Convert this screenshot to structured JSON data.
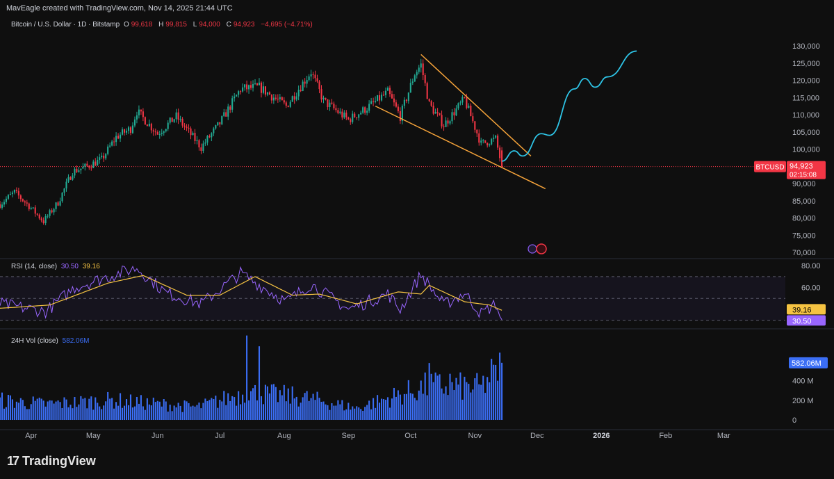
{
  "caption": "MavEagle created with TradingView.com, Nov 14, 2025 21:44 UTC",
  "logo": {
    "mark": "17",
    "text": "TradingView",
    "icon": "tradingview-logo-icon"
  },
  "legend": {
    "symbol": "Bitcoin / U.S. Dollar · 1D · Bitstamp",
    "o_label": "O",
    "o": "99,618",
    "h_label": "H",
    "h": "99,815",
    "l_label": "L",
    "l": "94,000",
    "c_label": "C",
    "c": "94,923",
    "change": "−4,695 (−4.71%)",
    "rsi_label": "RSI (14, close)",
    "rsi": "30.50",
    "rsi_ma": "39.16",
    "vol_label": "24H Vol (close)",
    "vol": "582.06M"
  },
  "badges": {
    "price_symbol": "BTCUSD",
    "price_value": "94,923",
    "price_countdown": "02:15:08",
    "rsi_ma": "39.16",
    "rsi": "30.50",
    "vol": "582.06M"
  },
  "colors": {
    "up": "#22ab94",
    "down": "#f23645",
    "trendline": "#f7a43a",
    "projection": "#2ec4e6",
    "rsi": "#9966ff",
    "rsi_ma": "#f5c342",
    "volume": "#3b6ef5"
  },
  "chart_data": [
    {
      "type": "candlestick",
      "title": "Bitcoin / U.S. Dollar · 1D · Bitstamp",
      "x_axis": {
        "ticks": [
          "Apr",
          "May",
          "Jun",
          "Jul",
          "Aug",
          "Sep",
          "Oct",
          "Nov",
          "Dec",
          "2026",
          "Feb",
          "Mar"
        ],
        "range": [
          "2025-03-17",
          "2026-03-24"
        ]
      },
      "y_axis": {
        "ticks": [
          "70,000",
          "75,000",
          "80,000",
          "85,000",
          "90,000",
          "95,000",
          "100,000",
          "105,000",
          "110,000",
          "115,000",
          "120,000",
          "125,000",
          "130,000"
        ],
        "range": [
          70000,
          130000
        ],
        "side": "right"
      },
      "last_price": 94923,
      "close_anchors": [
        {
          "date": "2025-03-17",
          "close": 84000
        },
        {
          "date": "2025-03-24",
          "close": 87500
        },
        {
          "date": "2025-03-31",
          "close": 83500
        },
        {
          "date": "2025-04-07",
          "close": 79000
        },
        {
          "date": "2025-04-14",
          "close": 84500
        },
        {
          "date": "2025-04-21",
          "close": 93500
        },
        {
          "date": "2025-04-28",
          "close": 95000
        },
        {
          "date": "2025-05-05",
          "close": 97000
        },
        {
          "date": "2025-05-12",
          "close": 103500
        },
        {
          "date": "2025-05-19",
          "close": 106000
        },
        {
          "date": "2025-05-22",
          "close": 111000
        },
        {
          "date": "2025-06-01",
          "close": 104500
        },
        {
          "date": "2025-06-10",
          "close": 109500
        },
        {
          "date": "2025-06-22",
          "close": 100500
        },
        {
          "date": "2025-07-01",
          "close": 107500
        },
        {
          "date": "2025-07-11",
          "close": 117500
        },
        {
          "date": "2025-07-20",
          "close": 118000
        },
        {
          "date": "2025-08-02",
          "close": 112500
        },
        {
          "date": "2025-08-14",
          "close": 122500
        },
        {
          "date": "2025-08-20",
          "close": 114000
        },
        {
          "date": "2025-09-01",
          "close": 108500
        },
        {
          "date": "2025-09-10",
          "close": 112000
        },
        {
          "date": "2025-09-20",
          "close": 116500
        },
        {
          "date": "2025-09-26",
          "close": 109500
        },
        {
          "date": "2025-10-03",
          "close": 122000
        },
        {
          "date": "2025-10-06",
          "close": 124500
        },
        {
          "date": "2025-10-10",
          "close": 113000
        },
        {
          "date": "2025-10-17",
          "close": 107000
        },
        {
          "date": "2025-10-27",
          "close": 114500
        },
        {
          "date": "2025-11-04",
          "close": 101500
        },
        {
          "date": "2025-11-11",
          "close": 103000
        },
        {
          "date": "2025-11-14",
          "close": 94923
        }
      ],
      "annotations": {
        "upper_trendline": [
          {
            "date": "2025-10-06",
            "price": 127500
          },
          {
            "date": "2025-11-28",
            "price": 98000
          }
        ],
        "lower_trendline": [
          {
            "date": "2025-09-14",
            "price": 112500
          },
          {
            "date": "2025-12-05",
            "price": 88500
          }
        ],
        "projection": [
          {
            "date": "2025-11-14",
            "price": 96500
          },
          {
            "date": "2025-11-20",
            "price": 99500
          },
          {
            "date": "2025-11-24",
            "price": 98000
          },
          {
            "date": "2025-12-03",
            "price": 104500
          },
          {
            "date": "2025-12-07",
            "price": 104000
          },
          {
            "date": "2025-12-19",
            "price": 117500
          },
          {
            "date": "2025-12-24",
            "price": 120500
          },
          {
            "date": "2025-12-29",
            "price": 118000
          },
          {
            "date": "2026-01-04",
            "price": 121000
          },
          {
            "date": "2026-01-18",
            "price": 128500
          }
        ]
      }
    },
    {
      "type": "line",
      "title": "RSI (14, close)",
      "y_axis": {
        "ticks": [
          "60.00",
          "80.00"
        ],
        "range": [
          30,
          80
        ],
        "levels": [
          70,
          50,
          30
        ]
      },
      "series": [
        {
          "name": "RSI",
          "last": 30.5,
          "anchors": [
            {
              "date": "2025-03-17",
              "value": 45
            },
            {
              "date": "2025-04-08",
              "value": 38
            },
            {
              "date": "2025-04-22",
              "value": 60
            },
            {
              "date": "2025-05-08",
              "value": 70
            },
            {
              "date": "2025-05-22",
              "value": 78
            },
            {
              "date": "2025-06-05",
              "value": 55
            },
            {
              "date": "2025-06-22",
              "value": 45
            },
            {
              "date": "2025-07-11",
              "value": 73
            },
            {
              "date": "2025-08-02",
              "value": 47
            },
            {
              "date": "2025-08-14",
              "value": 63
            },
            {
              "date": "2025-09-01",
              "value": 40
            },
            {
              "date": "2025-09-20",
              "value": 54
            },
            {
              "date": "2025-09-26",
              "value": 40
            },
            {
              "date": "2025-10-06",
              "value": 72
            },
            {
              "date": "2025-10-17",
              "value": 44
            },
            {
              "date": "2025-10-27",
              "value": 55
            },
            {
              "date": "2025-11-04",
              "value": 36
            },
            {
              "date": "2025-11-11",
              "value": 45
            },
            {
              "date": "2025-11-14",
              "value": 30.5
            }
          ]
        },
        {
          "name": "RSI-based MA",
          "last": 39.16,
          "anchors": [
            {
              "date": "2025-03-17",
              "value": 41
            },
            {
              "date": "2025-04-10",
              "value": 44
            },
            {
              "date": "2025-05-08",
              "value": 64
            },
            {
              "date": "2025-05-25",
              "value": 71
            },
            {
              "date": "2025-06-15",
              "value": 53
            },
            {
              "date": "2025-07-01",
              "value": 53
            },
            {
              "date": "2025-07-18",
              "value": 70
            },
            {
              "date": "2025-08-05",
              "value": 53
            },
            {
              "date": "2025-08-18",
              "value": 54
            },
            {
              "date": "2025-09-05",
              "value": 45
            },
            {
              "date": "2025-09-25",
              "value": 56
            },
            {
              "date": "2025-10-06",
              "value": 54
            },
            {
              "date": "2025-10-10",
              "value": 62
            },
            {
              "date": "2025-10-27",
              "value": 47
            },
            {
              "date": "2025-11-08",
              "value": 44
            },
            {
              "date": "2025-11-14",
              "value": 39.16
            }
          ]
        }
      ]
    },
    {
      "type": "bar",
      "title": "24H Vol (close)",
      "y_axis": {
        "ticks": [
          "0",
          "200 M",
          "400 M"
        ],
        "range": [
          0,
          850000000
        ]
      },
      "last_value": 582060000,
      "anchors": [
        {
          "date": "2025-03-17",
          "value": 200000000
        },
        {
          "date": "2025-04-08",
          "value": 160000000
        },
        {
          "date": "2025-05-10",
          "value": 200000000
        },
        {
          "date": "2025-06-20",
          "value": 130000000
        },
        {
          "date": "2025-07-14",
          "value": 280000000
        },
        {
          "date": "2025-08-10",
          "value": 230000000
        },
        {
          "date": "2025-09-05",
          "value": 120000000
        },
        {
          "date": "2025-10-10",
          "value": 350000000
        },
        {
          "date": "2025-11-04",
          "value": 330000000
        },
        {
          "date": "2025-11-14",
          "value": 582060000
        }
      ],
      "spikes": [
        {
          "date": "2025-07-14",
          "value": 860000000
        },
        {
          "date": "2025-07-20",
          "value": 750000000
        },
        {
          "date": "2025-10-10",
          "value": 580000000
        },
        {
          "date": "2025-10-20",
          "value": 470000000
        },
        {
          "date": "2025-11-11",
          "value": 560000000
        },
        {
          "date": "2025-11-14",
          "value": 582060000
        }
      ]
    }
  ]
}
